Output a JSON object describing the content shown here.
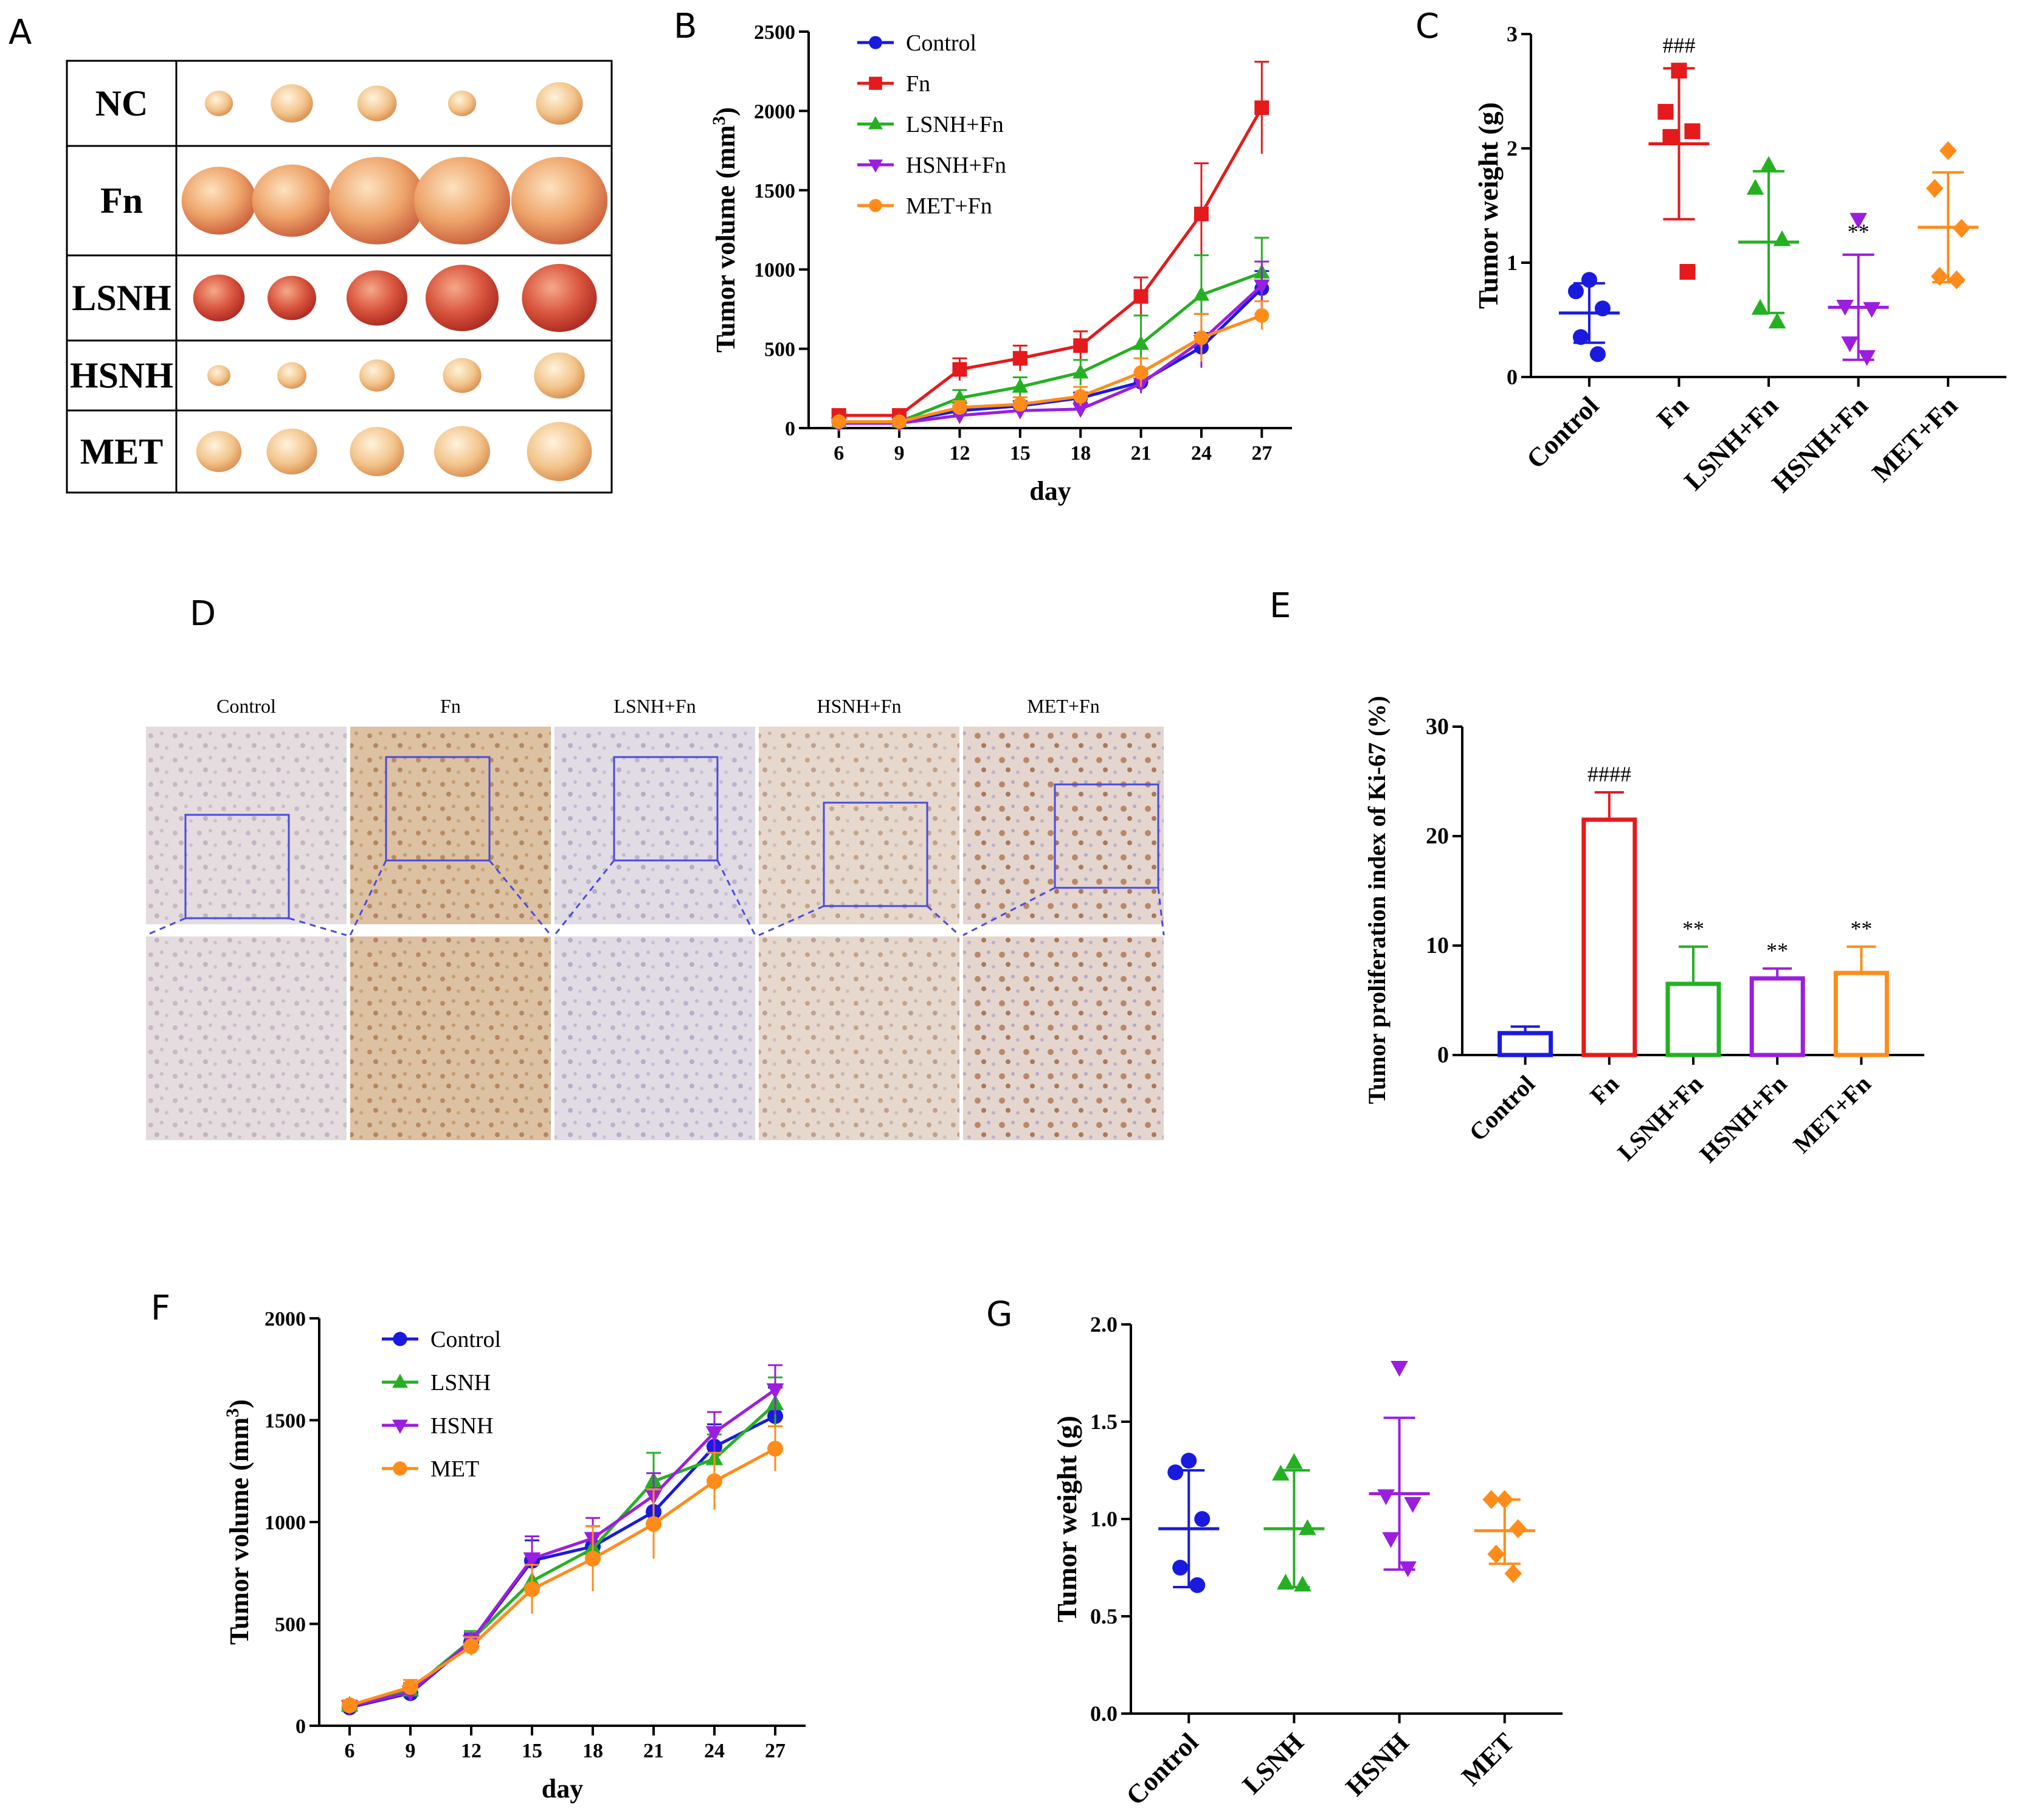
{
  "panel_letters": {
    "A": "A",
    "B": "B",
    "C": "C",
    "D": "D",
    "E": "E",
    "F": "F",
    "G": "G"
  },
  "colors": {
    "Control": "#1a1adf",
    "Fn": "#e41a1c",
    "LSNH": "#25b024",
    "HSNH": "#9b1ee0",
    "MET": "#ff8c1a"
  },
  "panel_a": {
    "rows": [
      "NC",
      "Fn",
      "LSNH",
      "HSNH",
      "MET"
    ],
    "tumor_color_tones": [
      "light",
      "orange",
      "red",
      "light",
      "orange-light"
    ]
  },
  "panel_d": {
    "columns": [
      "Control",
      "Fn",
      "LSNH+Fn",
      "HSNH+Fn",
      "MET+Fn"
    ]
  },
  "chart_data": [
    {
      "id": "B",
      "type": "line",
      "title": "",
      "xlabel": "day",
      "ylabel_main": "Tumor volume (mm",
      "ylabel_sup": "3",
      "ylabel_end": ")",
      "x": [
        6,
        9,
        12,
        15,
        18,
        21,
        24,
        27
      ],
      "ylim": [
        0,
        2500
      ],
      "yticks": [
        0,
        500,
        1000,
        1500,
        2000,
        2500
      ],
      "legend_position": "top-left",
      "series": [
        {
          "name": "Control",
          "marker": "circle",
          "values": [
            35,
            40,
            110,
            140,
            190,
            290,
            510,
            880
          ],
          "err": [
            15,
            15,
            30,
            30,
            35,
            60,
            90,
            110
          ]
        },
        {
          "name": "Fn",
          "marker": "square",
          "values": [
            80,
            80,
            370,
            440,
            520,
            830,
            1350,
            2020
          ],
          "err": [
            20,
            20,
            70,
            80,
            90,
            120,
            320,
            290
          ]
        },
        {
          "name": "LSNH+Fn",
          "marker": "triangle-up",
          "values": [
            40,
            40,
            190,
            260,
            350,
            530,
            840,
            980
          ],
          "err": [
            15,
            15,
            50,
            60,
            80,
            180,
            250,
            220
          ]
        },
        {
          "name": "HSNH+Fn",
          "marker": "triangle-down",
          "values": [
            30,
            30,
            80,
            110,
            120,
            280,
            550,
            900
          ],
          "err": [
            12,
            12,
            25,
            30,
            40,
            60,
            170,
            150
          ]
        },
        {
          "name": "MET+Fn",
          "marker": "circle",
          "values": [
            40,
            40,
            130,
            150,
            200,
            350,
            570,
            710
          ],
          "err": [
            15,
            15,
            40,
            45,
            60,
            90,
            150,
            90
          ]
        }
      ]
    },
    {
      "id": "C",
      "type": "scatter",
      "ylabel": "Tumor weight (g)",
      "categories": [
        "Control",
        "Fn",
        "LSNH+Fn",
        "HSNH+Fn",
        "MET+Fn"
      ],
      "ylim": [
        0,
        3
      ],
      "yticks": [
        0,
        1,
        2,
        3
      ],
      "markers": [
        "circle",
        "square",
        "triangle-up",
        "triangle-down",
        "diamond"
      ],
      "points": [
        [
          0.85,
          0.75,
          0.6,
          0.35,
          0.2
        ],
        [
          2.68,
          2.32,
          2.15,
          2.1,
          0.92
        ],
        [
          1.85,
          1.65,
          1.2,
          0.6,
          0.48
        ],
        [
          1.38,
          0.62,
          0.6,
          0.3,
          0.18
        ],
        [
          1.98,
          1.65,
          1.3,
          0.88,
          0.85
        ]
      ],
      "mean": [
        0.56,
        2.04,
        1.18,
        0.61,
        1.31
      ],
      "sd_low": [
        0.3,
        1.38,
        0.56,
        0.15,
        0.83
      ],
      "sd_high": [
        0.82,
        2.7,
        1.8,
        1.07,
        1.79
      ],
      "annotations": [
        "",
        "###",
        "",
        "**",
        ""
      ]
    },
    {
      "id": "E",
      "type": "bar",
      "ylabel": "Tumor proliferation index of Ki-67 (%)",
      "categories": [
        "Control",
        "Fn",
        "LSNH+Fn",
        "HSNH+Fn",
        "MET+Fn"
      ],
      "values": [
        2.0,
        21.5,
        6.5,
        7.0,
        7.5
      ],
      "err": [
        0.6,
        2.5,
        3.4,
        0.9,
        2.4
      ],
      "ylim": [
        0,
        30
      ],
      "yticks": [
        0,
        10,
        20,
        30
      ],
      "annotations": [
        "",
        "####",
        "**",
        "**",
        "**"
      ]
    },
    {
      "id": "F",
      "type": "line",
      "xlabel": "day",
      "ylabel_main": "Tumor volume (mm",
      "ylabel_sup": "3",
      "ylabel_end": ")",
      "x": [
        6,
        9,
        12,
        15,
        18,
        21,
        24,
        27
      ],
      "ylim": [
        0,
        2000
      ],
      "yticks": [
        0,
        500,
        1000,
        1500,
        2000
      ],
      "legend_position": "top-left",
      "series": [
        {
          "name": "Control",
          "marker": "circle",
          "values": [
            90,
            160,
            410,
            810,
            880,
            1050,
            1370,
            1520
          ],
          "err": [
            20,
            30,
            40,
            100,
            100,
            120,
            110,
            140
          ]
        },
        {
          "name": "LSNH",
          "marker": "triangle-up",
          "values": [
            100,
            175,
            420,
            710,
            870,
            1200,
            1310,
            1580
          ],
          "err": [
            25,
            35,
            45,
            130,
            110,
            140,
            120,
            130
          ]
        },
        {
          "name": "HSNH",
          "marker": "triangle-down",
          "values": [
            95,
            165,
            415,
            820,
            920,
            1130,
            1440,
            1650
          ],
          "err": [
            20,
            30,
            40,
            110,
            100,
            110,
            100,
            120
          ]
        },
        {
          "name": "MET",
          "marker": "circle",
          "values": [
            100,
            190,
            390,
            670,
            820,
            990,
            1200,
            1360
          ],
          "err": [
            25,
            35,
            45,
            120,
            160,
            170,
            140,
            110
          ]
        }
      ]
    },
    {
      "id": "G",
      "type": "scatter",
      "ylabel": "Tumor weight (g)",
      "categories": [
        "Control",
        "LSNH",
        "HSNH",
        "MET"
      ],
      "ylim": [
        0,
        2
      ],
      "yticks": [
        "0.0",
        "0.5",
        "1.0",
        "1.5",
        "2.0"
      ],
      "markers": [
        "circle",
        "triangle-up",
        "triangle-down",
        "diamond"
      ],
      "points": [
        [
          1.3,
          1.24,
          1.0,
          0.75,
          0.66
        ],
        [
          1.29,
          1.23,
          0.95,
          0.67,
          0.66
        ],
        [
          1.78,
          1.12,
          1.08,
          0.9,
          0.75
        ],
        [
          1.1,
          1.1,
          0.95,
          0.82,
          0.72
        ]
      ],
      "mean": [
        0.95,
        0.95,
        1.13,
        0.94
      ],
      "sd_low": [
        0.65,
        0.65,
        0.74,
        0.77
      ],
      "sd_high": [
        1.25,
        1.25,
        1.52,
        1.1
      ]
    }
  ]
}
